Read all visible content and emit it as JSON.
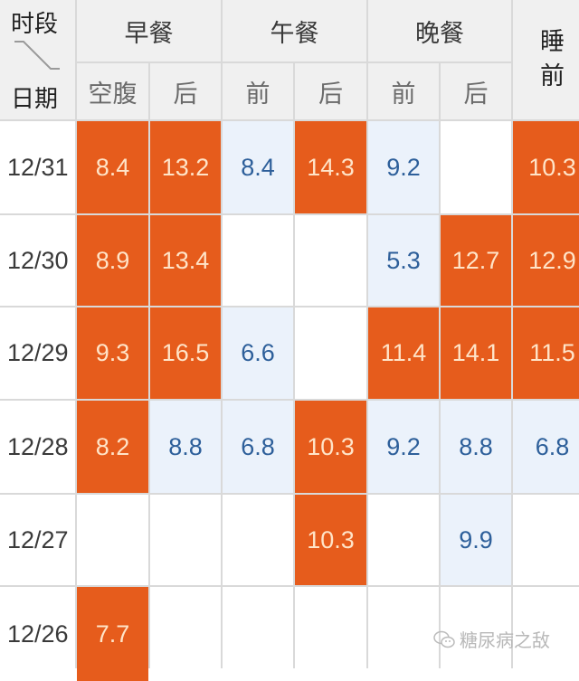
{
  "header": {
    "corner": {
      "top": "时段",
      "bottom": "日期"
    },
    "groups": [
      {
        "label": "早餐",
        "subs": [
          "空腹",
          "后"
        ]
      },
      {
        "label": "午餐",
        "subs": [
          "前",
          "后"
        ]
      },
      {
        "label": "晚餐",
        "subs": [
          "前",
          "后"
        ]
      }
    ],
    "sleep": [
      "睡",
      "前"
    ]
  },
  "rows": [
    {
      "date": "12/31",
      "values": [
        "8.4",
        "13.2",
        "8.4",
        "14.3",
        "9.2",
        "",
        "10.3"
      ],
      "status": [
        "high",
        "high",
        "normal",
        "high",
        "normal",
        "empty",
        "high"
      ]
    },
    {
      "date": "12/30",
      "values": [
        "8.9",
        "13.4",
        "",
        "",
        "5.3",
        "12.7",
        "12.9"
      ],
      "status": [
        "high",
        "high",
        "empty",
        "empty",
        "normal",
        "high",
        "high"
      ]
    },
    {
      "date": "12/29",
      "values": [
        "9.3",
        "16.5",
        "6.6",
        "",
        "11.4",
        "14.1",
        "11.5"
      ],
      "status": [
        "high",
        "high",
        "normal",
        "empty",
        "high",
        "high",
        "high"
      ]
    },
    {
      "date": "12/28",
      "values": [
        "8.2",
        "8.8",
        "6.8",
        "10.3",
        "9.2",
        "8.8",
        "6.8"
      ],
      "status": [
        "high",
        "normal",
        "normal",
        "high",
        "normal",
        "normal",
        "normal"
      ]
    },
    {
      "date": "12/27",
      "values": [
        "",
        "",
        "",
        "10.3",
        "",
        "9.9",
        ""
      ],
      "status": [
        "empty",
        "empty",
        "empty",
        "high",
        "empty",
        "normal",
        "empty"
      ]
    },
    {
      "date": "12/26",
      "values": [
        "7.7",
        "",
        "",
        "",
        "",
        "",
        ""
      ],
      "status": [
        "high",
        "empty",
        "empty",
        "empty",
        "empty",
        "empty",
        "empty"
      ]
    }
  ],
  "watermark": {
    "icon": "wechat-icon",
    "text": "糖尿病之敌"
  },
  "colors": {
    "high": "#e65c1c",
    "high_text": "#ffe4c8",
    "normal": "#ebf2fb",
    "normal_text": "#2d5f9a",
    "header_bg": "#f0f0f0",
    "grid": "#d9d9d9"
  },
  "chart_data": {
    "type": "table",
    "title": "",
    "columns": [
      "日期",
      "早餐空腹",
      "早餐后",
      "午餐前",
      "午餐后",
      "晚餐前",
      "晚餐后",
      "睡前"
    ],
    "rows": [
      [
        "12/31",
        8.4,
        13.2,
        8.4,
        14.3,
        9.2,
        null,
        10.3
      ],
      [
        "12/30",
        8.9,
        13.4,
        null,
        null,
        5.3,
        12.7,
        12.9
      ],
      [
        "12/29",
        9.3,
        16.5,
        6.6,
        null,
        11.4,
        14.1,
        11.5
      ],
      [
        "12/28",
        8.2,
        8.8,
        6.8,
        10.3,
        9.2,
        8.8,
        6.8
      ],
      [
        "12/27",
        null,
        null,
        null,
        10.3,
        null,
        9.9,
        null
      ],
      [
        "12/26",
        7.7,
        null,
        null,
        null,
        null,
        null,
        null
      ]
    ],
    "highlight": {
      "high": "orange cells = elevated",
      "normal": "light blue cells = normal"
    }
  }
}
